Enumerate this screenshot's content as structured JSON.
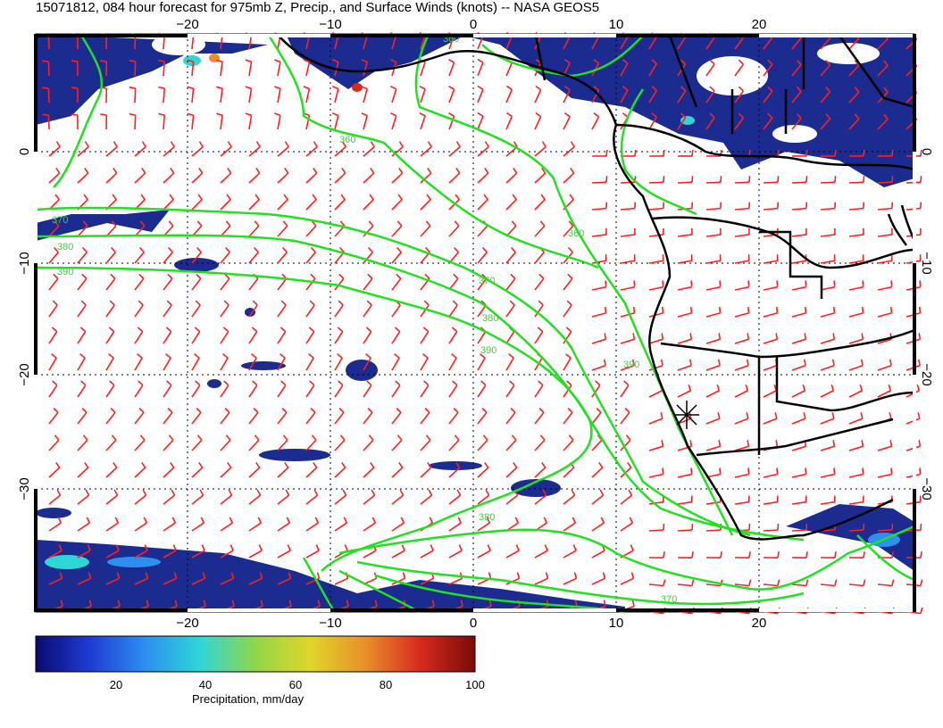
{
  "title": "15071812, 084 hour forecast for 975mb Z, Precip., and Surface Winds (knots) -- NASA GEOS5",
  "colors": {
    "contour": "#22e022",
    "barb": "#ff2020",
    "precip_low": "#1b2b8f",
    "coast": "#000000",
    "ocean": "#ffffff"
  },
  "axes": {
    "lon_ticks": [
      "−20",
      "−10",
      "0",
      "10",
      "20"
    ],
    "lat_ticks": [
      "0",
      "−10",
      "−20",
      "−30"
    ]
  },
  "contour_labels": [
    "360",
    "370",
    "380",
    "390",
    "380",
    "370",
    "360",
    "390",
    "380",
    "370",
    "360",
    "390"
  ],
  "colorbar": {
    "label": "Precipitation, mm/day",
    "ticks": [
      "20",
      "40",
      "60",
      "80",
      "100"
    ],
    "stops": [
      "#0a0a6e",
      "#1f3cd6",
      "#2d8ff0",
      "#2fd6d6",
      "#90d64a",
      "#e0d62a",
      "#e8902a",
      "#d82a1e",
      "#7a0a0a"
    ]
  },
  "icons": {
    "target": "asterisk-marker-icon"
  }
}
